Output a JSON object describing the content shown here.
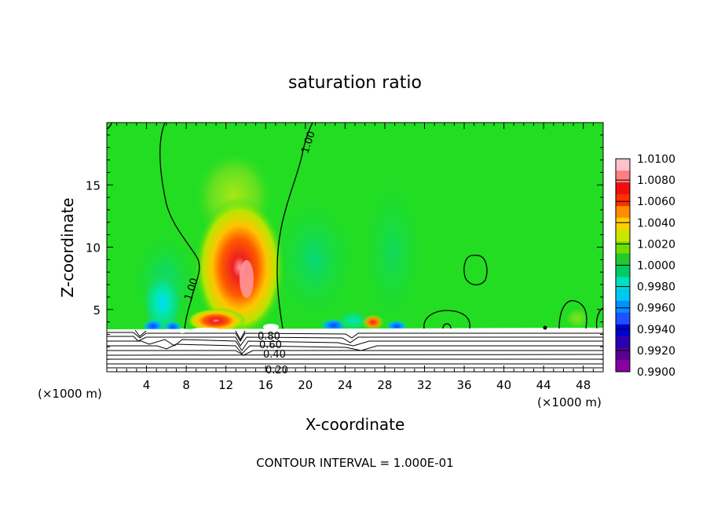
{
  "chart_data": {
    "type": "heatmap",
    "title": "saturation ratio",
    "xlabel": "X-coordinate",
    "ylabel": "Z-coordinate",
    "x_unit_left": "(×1000 m)",
    "x_unit_right": "(×1000 m)",
    "footer": "CONTOUR INTERVAL = 1.000E-01",
    "xlim": [
      0,
      50
    ],
    "ylim": [
      0,
      20
    ],
    "x_ticks": [
      4,
      8,
      12,
      16,
      20,
      24,
      28,
      32,
      36,
      40,
      44,
      48
    ],
    "x_tick_labels": [
      "4",
      "8",
      "12",
      "16",
      "20",
      "24",
      "28",
      "32",
      "36",
      "40",
      "44",
      "48"
    ],
    "y_ticks": [
      5,
      10,
      15
    ],
    "y_tick_labels": [
      "5",
      "10",
      "15"
    ],
    "colorbar": {
      "levels": [
        "1.0100",
        "1.0080",
        "1.0060",
        "1.0040",
        "1.0020",
        "1.0000",
        "0.9980",
        "0.9960",
        "0.9940",
        "0.9920",
        "0.9900"
      ],
      "colors": [
        "#ffc0cb",
        "#ff8080",
        "#ee1010",
        "#ff3000",
        "#ff8c00",
        "#ffd000",
        "#c8e600",
        "#70dc00",
        "#22c830",
        "#00cc66",
        "#00e0c0",
        "#00c8f0",
        "#0090ff",
        "#2050ff",
        "#0000d0",
        "#2a00b0",
        "#5a0090",
        "#8a00a0"
      ]
    },
    "contour_labels": [
      "1.00",
      "1.00",
      "0.80",
      "0.60",
      "0.40",
      "0.20"
    ],
    "background_color": "#22dd22",
    "terrain_top_z": 3.4
  }
}
